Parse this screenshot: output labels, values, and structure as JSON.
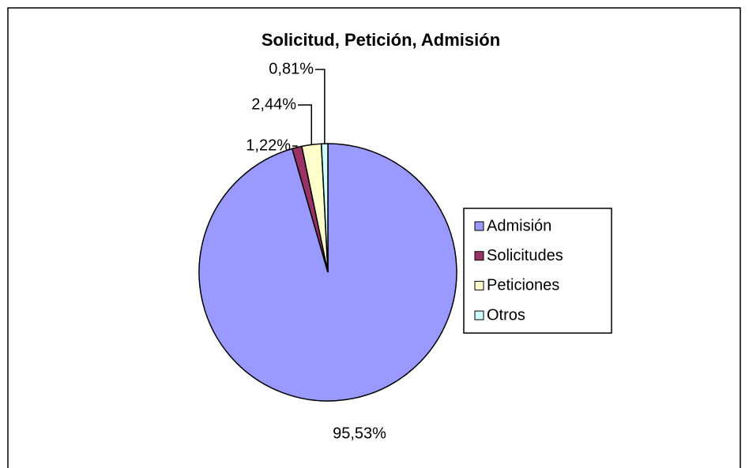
{
  "chart_data": {
    "type": "pie",
    "title": "Solicitud, Petición, Admisión",
    "categories": [
      "Admisión",
      "Solicitudes",
      "Peticiones",
      "Otros"
    ],
    "values": [
      95.53,
      1.22,
      2.44,
      0.81
    ],
    "value_labels": [
      "95,53%",
      "1,22%",
      "2,44%",
      "0,81%"
    ],
    "colors": [
      "#9999ff",
      "#993366",
      "#ffffcc",
      "#ccffff"
    ],
    "legend": "right"
  }
}
